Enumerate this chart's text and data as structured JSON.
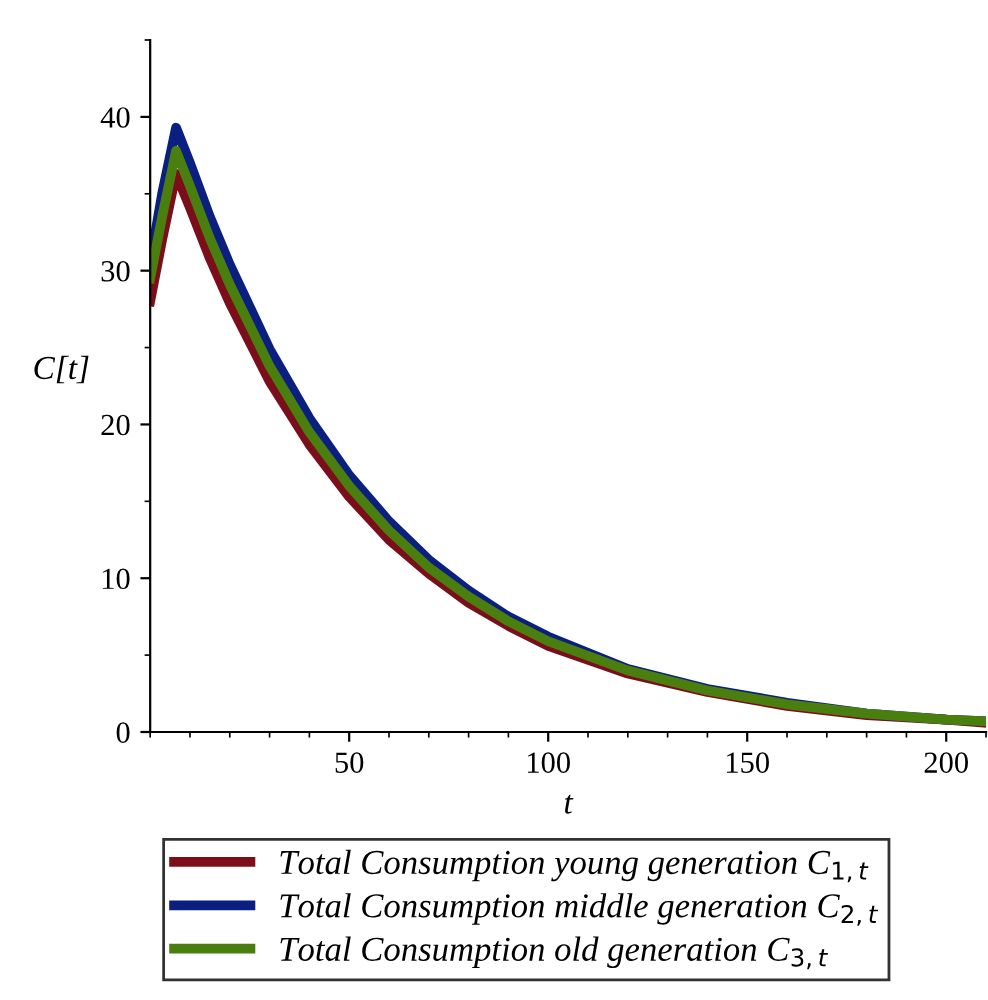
{
  "chart_data": {
    "type": "line",
    "xlabel": "t",
    "ylabel": "C[t]",
    "xlim": [
      0,
      210
    ],
    "ylim": [
      0,
      45
    ],
    "xticks": [
      50,
      100,
      150,
      200
    ],
    "yticks": [
      0,
      10,
      20,
      30,
      40
    ],
    "grid": false,
    "legend": "bottom",
    "line_style": "solid",
    "marker": "none",
    "x": [
      0,
      3,
      6.5,
      10,
      15,
      20,
      30,
      40,
      50,
      60,
      70,
      80,
      90,
      100,
      120,
      140,
      160,
      180,
      200,
      210
    ],
    "series": [
      {
        "name": "Total Consumption young generation C$_{1,t}$",
        "color": "#7b0e1a",
        "values": [
          28.0,
          32,
          36.3,
          34.1,
          30.8,
          27.9,
          22.8,
          18.7,
          15.3,
          12.5,
          10.3,
          8.4,
          6.9,
          5.6,
          3.8,
          2.6,
          1.7,
          1.1,
          0.8,
          0.6
        ]
      },
      {
        "name": "Total Consumption middle generation C$_{2,t}$",
        "color": "#0a1f7f",
        "values": [
          30.5,
          35,
          39.3,
          37.0,
          33.5,
          30.4,
          24.9,
          20.4,
          16.7,
          13.7,
          11.2,
          9.2,
          7.5,
          6.2,
          4.1,
          2.8,
          1.9,
          1.2,
          0.8,
          0.7
        ]
      },
      {
        "name": "Total Consumption old generation C$_{3,t}$",
        "color": "#4a7f10",
        "values": [
          29.5,
          33.5,
          37.8,
          35.5,
          32.1,
          29.1,
          23.8,
          19.5,
          16.0,
          13.1,
          10.7,
          8.8,
          7.2,
          5.9,
          4.0,
          2.7,
          1.8,
          1.2,
          0.8,
          0.7
        ]
      }
    ]
  }
}
